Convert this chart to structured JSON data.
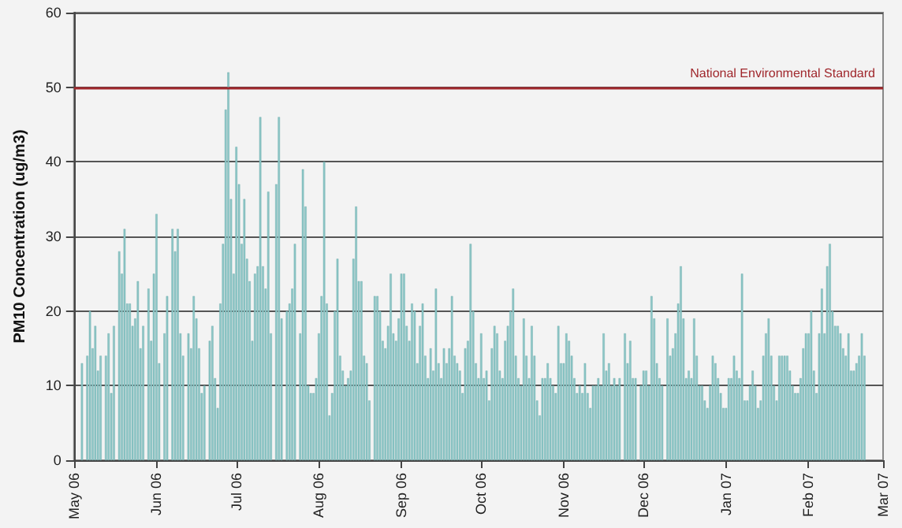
{
  "chart_data": {
    "type": "bar",
    "ylabel": "PM10 Concentration (ug/m3)",
    "color": "#8cc6c6",
    "x": [
      "2006-05-04",
      "2006-05-06",
      "2006-05-07",
      "2006-05-08",
      "2006-05-09",
      "2006-05-10",
      "2006-05-11",
      "2006-05-13",
      "2006-05-14",
      "2006-05-15",
      "2006-05-16",
      "2006-05-18",
      "2006-05-19",
      "2006-05-20",
      "2006-05-21",
      "2006-05-22",
      "2006-05-23",
      "2006-05-24",
      "2006-05-25",
      "2006-05-26",
      "2006-05-27",
      "2006-05-29",
      "2006-05-30",
      "2006-05-31",
      "2006-06-01",
      "2006-06-02",
      "2006-06-04",
      "2006-06-05",
      "2006-06-07",
      "2006-06-08",
      "2006-06-09",
      "2006-06-10",
      "2006-06-11",
      "2006-06-13",
      "2006-06-14",
      "2006-06-15",
      "2006-06-16",
      "2006-06-17",
      "2006-06-18",
      "2006-06-19",
      "2006-06-21",
      "2006-06-22",
      "2006-06-23",
      "2006-06-24",
      "2006-06-25",
      "2006-06-26",
      "2006-06-27",
      "2006-06-28",
      "2006-06-29",
      "2006-06-30",
      "2006-07-01",
      "2006-07-02",
      "2006-07-03",
      "2006-07-04",
      "2006-07-05",
      "2006-07-06",
      "2006-07-07",
      "2006-07-08",
      "2006-07-09",
      "2006-07-10",
      "2006-07-11",
      "2006-07-12",
      "2006-07-13",
      "2006-07-14",
      "2006-07-16",
      "2006-07-17",
      "2006-07-18",
      "2006-07-20",
      "2006-07-21",
      "2006-07-22",
      "2006-07-23",
      "2006-07-25",
      "2006-07-26",
      "2006-07-27",
      "2006-07-28",
      "2006-07-29",
      "2006-07-30",
      "2006-07-31",
      "2006-08-01",
      "2006-08-02",
      "2006-08-03",
      "2006-08-04",
      "2006-08-05",
      "2006-08-06",
      "2006-08-07",
      "2006-08-08",
      "2006-08-09",
      "2006-08-10",
      "2006-08-11",
      "2006-08-12",
      "2006-08-13",
      "2006-08-14",
      "2006-08-15",
      "2006-08-16",
      "2006-08-17",
      "2006-08-18",
      "2006-08-19",
      "2006-08-20",
      "2006-08-22",
      "2006-08-23",
      "2006-08-24",
      "2006-08-25",
      "2006-08-26",
      "2006-08-27",
      "2006-08-28",
      "2006-08-29",
      "2006-08-30",
      "2006-08-31",
      "2006-09-01",
      "2006-09-02",
      "2006-09-03",
      "2006-09-04",
      "2006-09-05",
      "2006-09-06",
      "2006-09-07",
      "2006-09-08",
      "2006-09-09",
      "2006-09-10",
      "2006-09-11",
      "2006-09-12",
      "2006-09-13",
      "2006-09-14",
      "2006-09-15",
      "2006-09-16",
      "2006-09-17",
      "2006-09-18",
      "2006-09-19",
      "2006-09-20",
      "2006-09-21",
      "2006-09-22",
      "2006-09-23",
      "2006-09-24",
      "2006-09-25",
      "2006-09-26",
      "2006-09-27",
      "2006-09-28",
      "2006-09-29",
      "2006-09-30",
      "2006-10-01",
      "2006-10-02",
      "2006-10-03",
      "2006-10-04",
      "2006-10-05",
      "2006-10-06",
      "2006-10-07",
      "2006-10-08",
      "2006-10-09",
      "2006-10-10",
      "2006-10-11",
      "2006-10-12",
      "2006-10-13",
      "2006-10-14",
      "2006-10-15",
      "2006-10-16",
      "2006-10-17",
      "2006-10-18",
      "2006-10-19",
      "2006-10-20",
      "2006-10-21",
      "2006-10-22",
      "2006-10-23",
      "2006-10-24",
      "2006-10-25",
      "2006-10-26",
      "2006-10-27",
      "2006-10-28",
      "2006-10-29",
      "2006-10-30",
      "2006-10-31",
      "2006-11-01",
      "2006-11-02",
      "2006-11-03",
      "2006-11-04",
      "2006-11-05",
      "2006-11-06",
      "2006-11-07",
      "2006-11-08",
      "2006-11-09",
      "2006-11-10",
      "2006-11-11",
      "2006-11-12",
      "2006-11-13",
      "2006-11-14",
      "2006-11-15",
      "2006-11-16",
      "2006-11-17",
      "2006-11-18",
      "2006-11-19",
      "2006-11-20",
      "2006-11-21",
      "2006-11-22",
      "2006-11-24",
      "2006-11-25",
      "2006-11-26",
      "2006-11-27",
      "2006-11-28",
      "2006-11-30",
      "2006-12-01",
      "2006-12-02",
      "2006-12-03",
      "2006-12-04",
      "2006-12-05",
      "2006-12-06",
      "2006-12-07",
      "2006-12-08",
      "2006-12-10",
      "2006-12-11",
      "2006-12-12",
      "2006-12-13",
      "2006-12-14",
      "2006-12-15",
      "2006-12-16",
      "2006-12-17",
      "2006-12-18",
      "2006-12-19",
      "2006-12-20",
      "2006-12-21",
      "2006-12-22",
      "2006-12-23",
      "2006-12-24",
      "2006-12-25",
      "2006-12-26",
      "2006-12-27",
      "2006-12-28",
      "2006-12-29",
      "2006-12-30",
      "2006-12-31",
      "2007-01-01",
      "2007-01-02",
      "2007-01-03",
      "2007-01-04",
      "2007-01-05",
      "2007-01-06",
      "2007-01-07",
      "2007-01-08",
      "2007-01-09",
      "2007-01-10",
      "2007-01-11",
      "2007-01-12",
      "2007-01-13",
      "2007-01-14",
      "2007-01-15",
      "2007-01-16",
      "2007-01-17",
      "2007-01-18",
      "2007-01-19",
      "2007-01-20",
      "2007-01-21",
      "2007-01-22",
      "2007-01-23",
      "2007-01-24",
      "2007-01-25",
      "2007-01-26",
      "2007-01-27",
      "2007-01-28",
      "2007-01-29",
      "2007-01-30",
      "2007-01-31",
      "2007-02-01",
      "2007-02-02",
      "2007-02-03",
      "2007-02-04",
      "2007-02-05",
      "2007-02-06",
      "2007-02-07",
      "2007-02-08",
      "2007-02-09",
      "2007-02-10",
      "2007-02-11",
      "2007-02-12",
      "2007-02-13",
      "2007-02-14",
      "2007-02-15",
      "2007-02-16",
      "2007-02-17",
      "2007-02-18",
      "2007-02-19",
      "2007-02-20",
      "2007-02-21",
      "2007-02-22"
    ],
    "values": [
      13,
      14,
      20,
      15,
      18,
      12,
      14,
      14,
      17,
      9,
      18,
      28,
      25,
      31,
      21,
      21,
      18,
      19,
      24,
      15,
      18,
      23,
      16,
      25,
      33,
      13,
      17,
      22,
      31,
      28,
      31,
      17,
      14,
      17,
      15,
      22,
      19,
      15,
      9,
      10,
      16,
      18,
      11,
      7,
      21,
      29,
      47,
      52,
      35,
      25,
      42,
      37,
      29,
      35,
      27,
      24,
      16,
      25,
      26,
      46,
      26,
      23,
      36,
      17,
      37,
      46,
      19,
      20,
      21,
      23,
      29,
      17,
      39,
      34,
      10,
      9,
      9,
      11,
      17,
      22,
      40,
      21,
      6,
      9,
      20,
      27,
      14,
      12,
      10,
      11,
      12,
      27,
      34,
      24,
      24,
      14,
      13,
      8,
      22,
      22,
      20,
      16,
      15,
      18,
      25,
      17,
      16,
      19,
      25,
      25,
      18,
      16,
      21,
      20,
      13,
      18,
      21,
      14,
      11,
      15,
      12,
      23,
      13,
      11,
      15,
      13,
      15,
      22,
      14,
      13,
      12,
      9,
      15,
      16,
      29,
      20,
      13,
      11,
      17,
      11,
      12,
      8,
      15,
      18,
      17,
      12,
      11,
      16,
      18,
      20,
      23,
      14,
      11,
      10,
      19,
      14,
      11,
      18,
      14,
      8,
      6,
      11,
      11,
      13,
      11,
      10,
      9,
      18,
      13,
      13,
      17,
      16,
      14,
      11,
      9,
      10,
      9,
      13,
      9,
      7,
      10,
      10,
      11,
      10,
      17,
      12,
      13,
      10,
      11,
      10,
      11,
      17,
      13,
      16,
      11,
      11,
      10,
      12,
      12,
      10,
      22,
      19,
      13,
      11,
      10,
      19,
      14,
      15,
      17,
      21,
      26,
      19,
      11,
      12,
      11,
      19,
      14,
      10,
      10,
      8,
      7,
      10,
      14,
      13,
      11,
      9,
      7,
      7,
      11,
      11,
      14,
      12,
      11,
      25,
      8,
      8,
      10,
      12,
      10,
      7,
      8,
      14,
      17,
      19,
      14,
      10,
      8,
      14,
      14,
      14,
      14,
      12,
      10,
      9,
      9,
      11,
      15,
      17,
      17,
      20,
      12,
      9,
      17,
      23,
      17,
      26,
      29,
      20,
      18,
      18,
      17,
      15,
      14,
      17,
      12,
      12,
      13,
      14,
      17,
      14
    ],
    "xlim": [
      "2006-05-01",
      "2007-03-01"
    ],
    "xticks": [
      {
        "value": "2006-05-01",
        "label": "May 06"
      },
      {
        "value": "2006-06-01",
        "label": "Jun 06"
      },
      {
        "value": "2006-07-01",
        "label": "Jul 06"
      },
      {
        "value": "2006-08-01",
        "label": "Aug 06"
      },
      {
        "value": "2006-09-01",
        "label": "Sep 06"
      },
      {
        "value": "2006-10-01",
        "label": "Oct 06"
      },
      {
        "value": "2006-11-01",
        "label": "Nov 06"
      },
      {
        "value": "2006-12-01",
        "label": "Dec 06"
      },
      {
        "value": "2007-01-01",
        "label": "Jan 07"
      },
      {
        "value": "2007-02-01",
        "label": "Feb 07"
      },
      {
        "value": "2007-03-01",
        "label": "Mar 07"
      }
    ],
    "ylim": [
      0,
      60
    ],
    "yticks": [
      0,
      10,
      20,
      30,
      40,
      50,
      60
    ],
    "grid": "y",
    "ref_lines": [
      {
        "axis": "y",
        "value": 50,
        "label": "National Environmental Standard",
        "color": "#a0282d"
      }
    ]
  }
}
